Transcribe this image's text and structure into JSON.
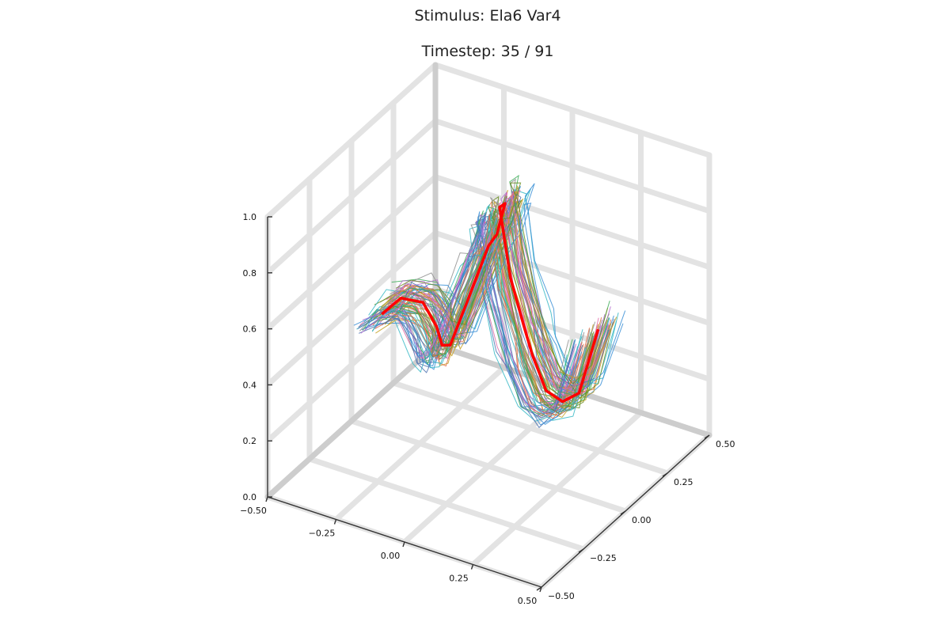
{
  "chart_data": {
    "type": "line",
    "projection": "3d",
    "title": "Stimulus: Ela6 Var4",
    "subtitle": "Timestep: 35 / 91",
    "axes": {
      "x": {
        "lim": [
          -0.5,
          0.5
        ],
        "ticks": [
          "−0.50",
          "−0.25",
          "0.00",
          "0.25",
          "0.50"
        ]
      },
      "y": {
        "lim": [
          -0.5,
          0.5
        ],
        "ticks": [
          "−0.50",
          "−0.25",
          "0.00",
          "0.25",
          "0.50"
        ]
      },
      "z": {
        "lim": [
          0.0,
          1.0
        ],
        "ticks": [
          "0.0",
          "0.2",
          "0.4",
          "0.6",
          "0.8",
          "1.0"
        ]
      }
    },
    "grid": true,
    "legend": false,
    "series": [
      {
        "role": "target-skeleton",
        "color": "#ff0000",
        "points": [
          [
            -0.42,
            0.05,
            0.38
          ],
          [
            -0.35,
            0.05,
            0.46
          ],
          [
            -0.27,
            0.05,
            0.47
          ],
          [
            -0.22,
            0.05,
            0.4
          ],
          [
            -0.2,
            0.05,
            0.34
          ],
          [
            -0.17,
            0.05,
            0.35
          ],
          [
            -0.11,
            0.05,
            0.52
          ],
          [
            -0.03,
            0.05,
            0.75
          ],
          [
            0.0,
            0.05,
            0.8
          ],
          [
            0.03,
            0.05,
            0.92
          ],
          [
            0.01,
            0.05,
            0.9
          ],
          [
            0.02,
            0.05,
            0.84
          ],
          [
            0.05,
            0.05,
            0.66
          ],
          [
            0.1,
            0.05,
            0.5
          ],
          [
            0.13,
            0.05,
            0.41
          ],
          [
            0.18,
            0.05,
            0.3
          ],
          [
            0.24,
            0.05,
            0.28
          ],
          [
            0.3,
            0.05,
            0.33
          ],
          [
            0.37,
            0.05,
            0.58
          ]
        ]
      }
    ],
    "ensemble": {
      "description_count": 80,
      "colors": [
        "#3a8fd6",
        "#e26f46",
        "#3fae5a",
        "#b56fd0",
        "#c5a023",
        "#37b8c6",
        "#e06aa8",
        "#8f8f8f",
        "#6b8e23",
        "#4c72b0"
      ]
    }
  }
}
